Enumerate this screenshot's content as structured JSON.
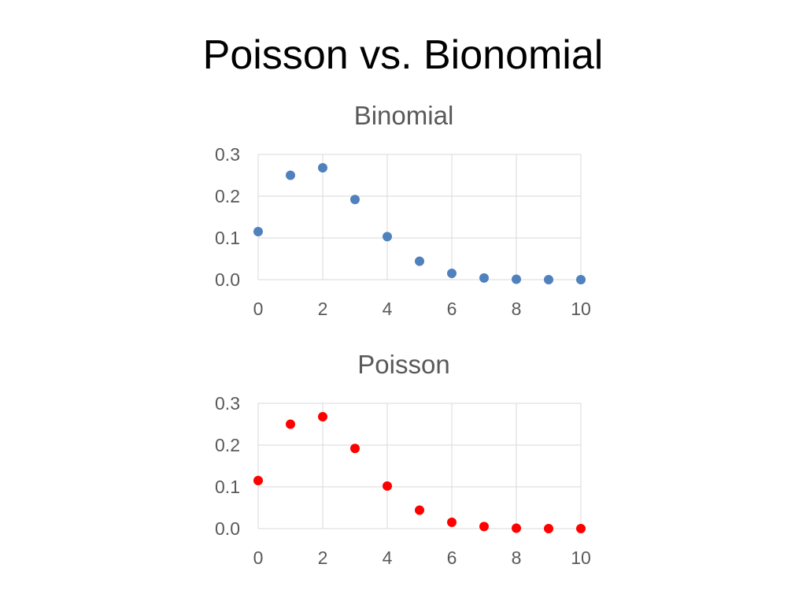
{
  "slide": {
    "title": "Poisson vs. Bionomial"
  },
  "chart_data": [
    {
      "type": "scatter",
      "title": "Binomial",
      "xlabel": "",
      "ylabel": "",
      "color": "#4f81bd",
      "xlim": [
        0,
        10
      ],
      "ylim": [
        0,
        0.3
      ],
      "x_ticks": [
        "0",
        "2",
        "4",
        "6",
        "8",
        "10"
      ],
      "y_ticks": [
        "0.0",
        "0.1",
        "0.2",
        "0.3"
      ],
      "x_tick_values": [
        0,
        2,
        4,
        6,
        8,
        10
      ],
      "y_tick_values": [
        0,
        0.1,
        0.2,
        0.3
      ],
      "grid": true,
      "series": [
        {
          "name": "Binomial",
          "x": [
            0,
            1,
            2,
            3,
            4,
            5,
            6,
            7,
            8,
            9,
            10
          ],
          "y": [
            0.115,
            0.25,
            0.268,
            0.192,
            0.103,
            0.044,
            0.015,
            0.004,
            0.001,
            0.0,
            0.0
          ]
        }
      ]
    },
    {
      "type": "scatter",
      "title": "Poisson",
      "xlabel": "",
      "ylabel": "",
      "color": "#ff0000",
      "xlim": [
        0,
        10
      ],
      "ylim": [
        0,
        0.3
      ],
      "x_ticks": [
        "0",
        "2",
        "4",
        "6",
        "8",
        "10"
      ],
      "y_ticks": [
        "0.0",
        "0.1",
        "0.2",
        "0.3"
      ],
      "x_tick_values": [
        0,
        2,
        4,
        6,
        8,
        10
      ],
      "y_tick_values": [
        0,
        0.1,
        0.2,
        0.3
      ],
      "grid": true,
      "series": [
        {
          "name": "Poisson",
          "x": [
            0,
            1,
            2,
            3,
            4,
            5,
            6,
            7,
            8,
            9,
            10
          ],
          "y": [
            0.115,
            0.25,
            0.268,
            0.192,
            0.102,
            0.044,
            0.015,
            0.005,
            0.001,
            0.0,
            0.0
          ]
        }
      ]
    }
  ]
}
